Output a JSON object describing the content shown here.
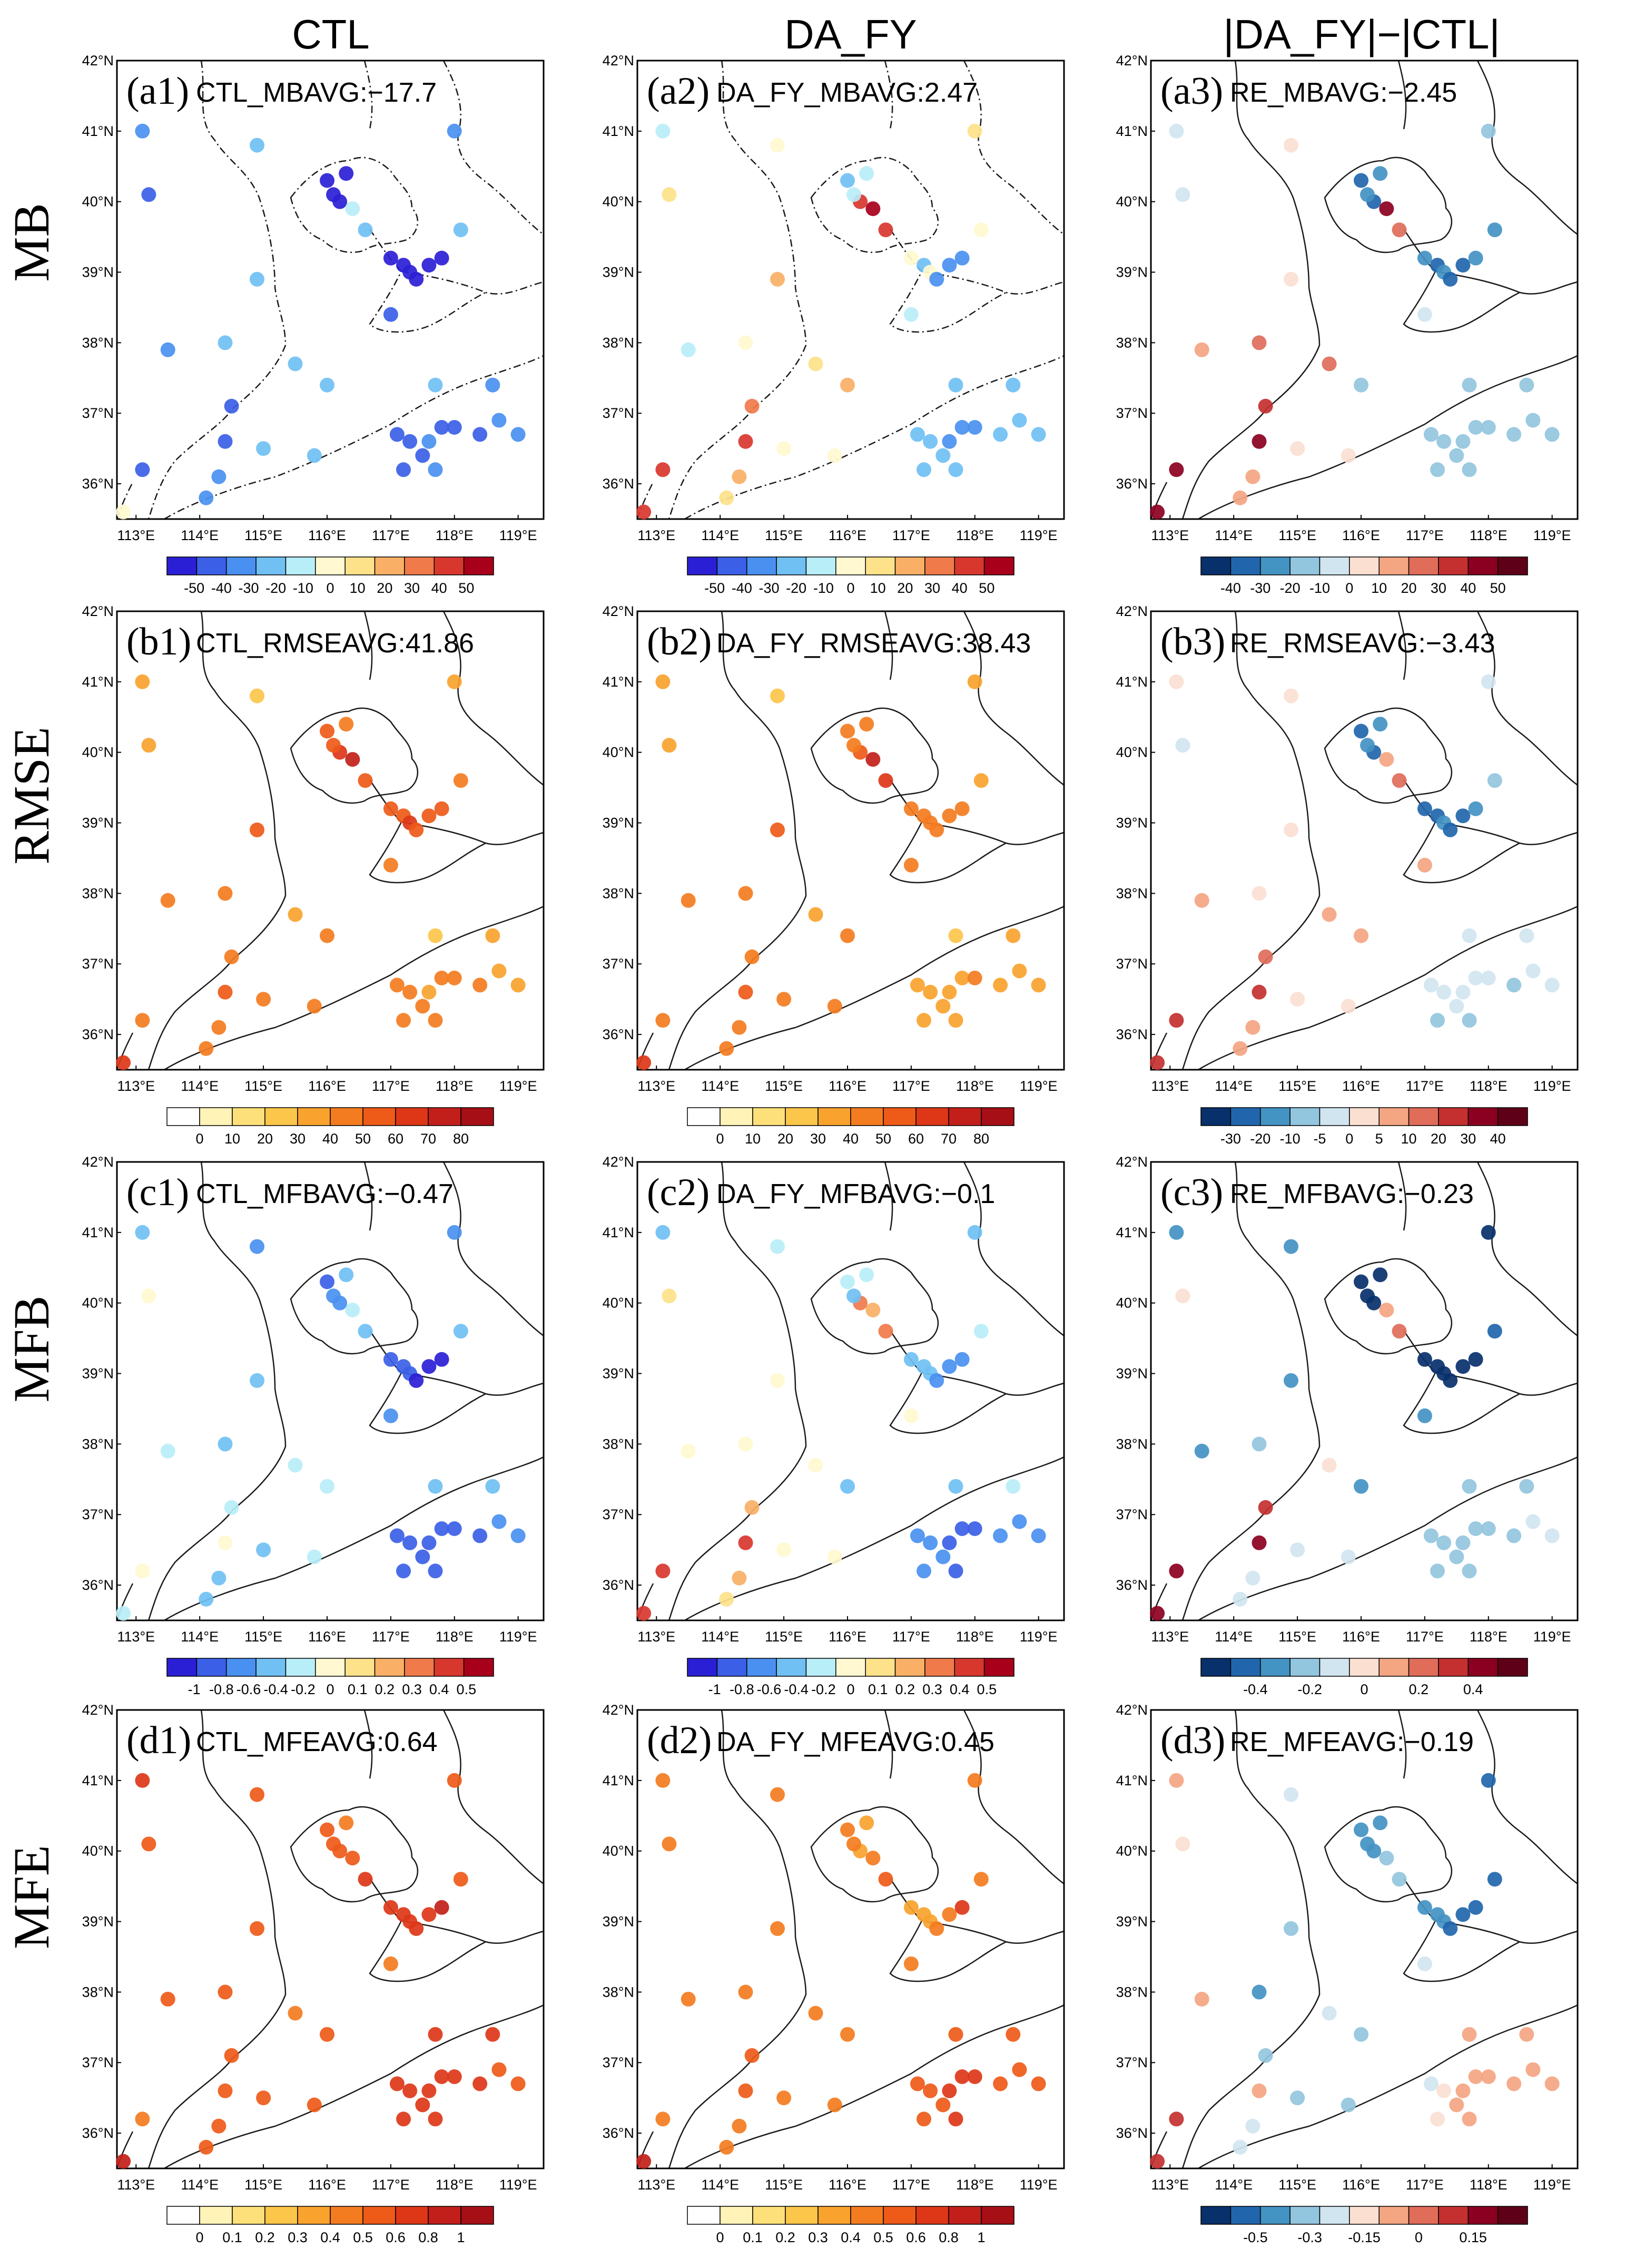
{
  "figure": {
    "column_titles": [
      "CTL",
      "DA_FY",
      "|DA_FY|−|CTL|"
    ],
    "row_labels": [
      "MB",
      "RMSE",
      "MFB",
      "MFE"
    ],
    "lat_ticks": [
      "36°N",
      "37°N",
      "38°N",
      "39°N",
      "40°N",
      "41°N",
      "42°N"
    ],
    "lon_ticks": [
      "113°E",
      "114°E",
      "115°E",
      "116°E",
      "117°E",
      "118°E",
      "119°E"
    ]
  },
  "chart_data": [
    {
      "type": "scatter-map",
      "label": "(a1)",
      "stat_text": "CTL_MBAVG:−17.7",
      "row": 0,
      "col": 0,
      "colorbar": "bwr",
      "colorbar_labels": [
        "-50",
        "-40",
        "-30",
        "-20",
        "-10",
        "0",
        "10",
        "20",
        "30",
        "40",
        "50"
      ]
    },
    {
      "type": "scatter-map",
      "label": "(a2)",
      "stat_text": "DA_FY_MBAVG:2.47",
      "row": 0,
      "col": 1,
      "colorbar": "bwr",
      "colorbar_labels": [
        "-50",
        "-40",
        "-30",
        "-20",
        "-10",
        "0",
        "10",
        "20",
        "30",
        "40",
        "50"
      ]
    },
    {
      "type": "scatter-map",
      "label": "(a3)",
      "stat_text": "RE_MBAVG:−2.45",
      "row": 0,
      "col": 2,
      "colorbar": "diff",
      "colorbar_labels": [
        "-40",
        "-30",
        "-20",
        "-10",
        "0",
        "10",
        "20",
        "30",
        "40",
        "50"
      ]
    },
    {
      "type": "scatter-map",
      "label": "(b1)",
      "stat_text": "CTL_RMSEAVG:41.86",
      "row": 1,
      "col": 0,
      "colorbar": "heat",
      "colorbar_labels": [
        "0",
        "10",
        "20",
        "30",
        "40",
        "50",
        "60",
        "70",
        "80"
      ]
    },
    {
      "type": "scatter-map",
      "label": "(b2)",
      "stat_text": "DA_FY_RMSEAVG:38.43",
      "row": 1,
      "col": 1,
      "colorbar": "heat",
      "colorbar_labels": [
        "0",
        "10",
        "20",
        "30",
        "40",
        "50",
        "60",
        "70",
        "80"
      ]
    },
    {
      "type": "scatter-map",
      "label": "(b3)",
      "stat_text": "RE_RMSEAVG:−3.43",
      "row": 1,
      "col": 2,
      "colorbar": "diff",
      "colorbar_labels": [
        "-30",
        "-20",
        "-10",
        "-5",
        "0",
        "5",
        "10",
        "20",
        "30",
        "40"
      ]
    },
    {
      "type": "scatter-map",
      "label": "(c1)",
      "stat_text": "CTL_MFBAVG:−0.47",
      "row": 2,
      "col": 0,
      "colorbar": "bwr",
      "colorbar_labels": [
        "-1",
        "-0.8",
        "-0.6",
        "-0.4",
        "-0.2",
        "0",
        "0.1",
        "0.2",
        "0.3",
        "0.4",
        "0.5"
      ]
    },
    {
      "type": "scatter-map",
      "label": "(c2)",
      "stat_text": "DA_FY_MFBAVG:−0.1",
      "row": 2,
      "col": 1,
      "colorbar": "bwr",
      "colorbar_labels": [
        "-1",
        "-0.8",
        "-0.6",
        "-0.4",
        "-0.2",
        "0",
        "0.1",
        "0.2",
        "0.3",
        "0.4",
        "0.5"
      ]
    },
    {
      "type": "scatter-map",
      "label": "(c3)",
      "stat_text": "RE_MFBAVG:−0.23",
      "row": 2,
      "col": 2,
      "colorbar": "diff",
      "colorbar_labels": [
        "-0.4",
        "-0.2",
        "0",
        "0.2",
        "0.4"
      ]
    },
    {
      "type": "scatter-map",
      "label": "(d1)",
      "stat_text": "CTL_MFEAVG:0.64",
      "row": 3,
      "col": 0,
      "colorbar": "heat",
      "colorbar_labels": [
        "0",
        "0.1",
        "0.2",
        "0.3",
        "0.4",
        "0.5",
        "0.6",
        "0.8",
        "1"
      ]
    },
    {
      "type": "scatter-map",
      "label": "(d2)",
      "stat_text": "DA_FY_MFEAVG:0.45",
      "row": 3,
      "col": 1,
      "colorbar": "heat",
      "colorbar_labels": [
        "0",
        "0.1",
        "0.2",
        "0.3",
        "0.4",
        "0.5",
        "0.6",
        "0.8",
        "1"
      ]
    },
    {
      "type": "scatter-map",
      "label": "(d3)",
      "stat_text": "RE_MFEAVG:−0.19",
      "row": 3,
      "col": 2,
      "colorbar": "diff",
      "colorbar_labels": [
        "-0.5",
        "-0.3",
        "-0.15",
        "0",
        "0.15"
      ]
    }
  ],
  "stations": [
    {
      "lon": 113.1,
      "lat": 41.0
    },
    {
      "lon": 113.2,
      "lat": 40.1
    },
    {
      "lon": 113.5,
      "lat": 37.9
    },
    {
      "lon": 113.1,
      "lat": 36.2
    },
    {
      "lon": 114.4,
      "lat": 36.6
    },
    {
      "lon": 114.3,
      "lat": 36.1
    },
    {
      "lon": 114.1,
      "lat": 35.8
    },
    {
      "lon": 114.5,
      "lat": 37.1
    },
    {
      "lon": 114.4,
      "lat": 38.0
    },
    {
      "lon": 115.5,
      "lat": 37.7
    },
    {
      "lon": 114.9,
      "lat": 38.9
    },
    {
      "lon": 114.9,
      "lat": 40.8
    },
    {
      "lon": 115.0,
      "lat": 36.5
    },
    {
      "lon": 116.0,
      "lat": 37.4
    },
    {
      "lon": 115.8,
      "lat": 36.4
    },
    {
      "lon": 116.0,
      "lat": 40.3
    },
    {
      "lon": 116.2,
      "lat": 40.0
    },
    {
      "lon": 116.4,
      "lat": 39.9
    },
    {
      "lon": 116.1,
      "lat": 40.1
    },
    {
      "lon": 116.3,
      "lat": 40.4
    },
    {
      "lon": 116.6,
      "lat": 39.6
    },
    {
      "lon": 117.0,
      "lat": 39.2
    },
    {
      "lon": 117.2,
      "lat": 39.1
    },
    {
      "lon": 117.3,
      "lat": 39.0
    },
    {
      "lon": 117.4,
      "lat": 38.9
    },
    {
      "lon": 117.6,
      "lat": 39.1
    },
    {
      "lon": 117.8,
      "lat": 39.2
    },
    {
      "lon": 118.1,
      "lat": 39.6
    },
    {
      "lon": 117.0,
      "lat": 38.4
    },
    {
      "lon": 118.0,
      "lat": 41.0
    },
    {
      "lon": 118.6,
      "lat": 37.4
    },
    {
      "lon": 117.7,
      "lat": 37.4
    },
    {
      "lon": 117.1,
      "lat": 36.7
    },
    {
      "lon": 117.3,
      "lat": 36.6
    },
    {
      "lon": 117.6,
      "lat": 36.6
    },
    {
      "lon": 117.8,
      "lat": 36.8
    },
    {
      "lon": 118.0,
      "lat": 36.8
    },
    {
      "lon": 117.5,
      "lat": 36.4
    },
    {
      "lon": 117.2,
      "lat": 36.2
    },
    {
      "lon": 117.7,
      "lat": 36.2
    },
    {
      "lon": 118.7,
      "lat": 36.9
    },
    {
      "lon": 119.0,
      "lat": 36.7
    },
    {
      "lon": 118.4,
      "lat": 36.7
    },
    {
      "lon": 112.8,
      "lat": 35.6
    }
  ],
  "colors": {
    "bwr": [
      "#2b1fd6",
      "#3b5fe6",
      "#4a90f0",
      "#70c0f4",
      "#b8eef8",
      "#fff8d0",
      "#fde28a",
      "#f9b066",
      "#f07a4a",
      "#d8372e",
      "#a8001a"
    ],
    "heat": [
      "#ffffff",
      "#fff3b8",
      "#fde07a",
      "#fcc64a",
      "#f9a32e",
      "#f47c20",
      "#ee5a18",
      "#dd3718",
      "#c21f1a",
      "#a50f15"
    ],
    "diff": [
      "#08306b",
      "#2166ac",
      "#4393c3",
      "#92c5de",
      "#d1e5f0",
      "#fbe0d2",
      "#f4a582",
      "#e06c5a",
      "#c3302f",
      "#8b0020",
      "#5e0018"
    ]
  },
  "values": {
    "a1": [
      0.2,
      0.1,
      0.2,
      0.1,
      0.1,
      0.2,
      0.2,
      0.1,
      0.3,
      0.3,
      0.3,
      0.3,
      0.3,
      0.3,
      0.3,
      0.0,
      0.0,
      0.4,
      0.0,
      0.0,
      0.3,
      0.0,
      0.0,
      0.0,
      0.0,
      0.0,
      0.0,
      0.3,
      0.1,
      0.2,
      0.2,
      0.3,
      0.1,
      0.1,
      0.2,
      0.1,
      0.1,
      0.1,
      0.1,
      0.2,
      0.2,
      0.2,
      0.1,
      0.5
    ],
    "a2": [
      0.4,
      0.6,
      0.4,
      0.9,
      0.9,
      0.7,
      0.6,
      0.8,
      0.5,
      0.6,
      0.7,
      0.5,
      0.5,
      0.7,
      0.5,
      0.3,
      0.9,
      1.0,
      0.4,
      0.4,
      0.9,
      0.5,
      0.3,
      0.5,
      0.2,
      0.2,
      0.2,
      0.5,
      0.4,
      0.6,
      0.3,
      0.3,
      0.3,
      0.3,
      0.2,
      0.2,
      0.2,
      0.3,
      0.3,
      0.3,
      0.3,
      0.3,
      0.3,
      0.9
    ],
    "a3": [
      0.4,
      0.4,
      0.6,
      0.9,
      0.9,
      0.6,
      0.6,
      0.8,
      0.7,
      0.7,
      0.5,
      0.5,
      0.5,
      0.3,
      0.5,
      0.1,
      0.1,
      0.9,
      0.2,
      0.2,
      0.7,
      0.2,
      0.1,
      0.2,
      0.1,
      0.1,
      0.2,
      0.2,
      0.4,
      0.3,
      0.3,
      0.3,
      0.3,
      0.3,
      0.3,
      0.3,
      0.3,
      0.3,
      0.3,
      0.3,
      0.3,
      0.3,
      0.3,
      0.9
    ],
    "b1": [
      0.4,
      0.4,
      0.5,
      0.5,
      0.7,
      0.5,
      0.5,
      0.6,
      0.6,
      0.4,
      0.7,
      0.3,
      0.5,
      0.5,
      0.5,
      0.7,
      0.8,
      0.9,
      0.7,
      0.6,
      0.7,
      0.7,
      0.7,
      0.8,
      0.7,
      0.7,
      0.7,
      0.6,
      0.5,
      0.4,
      0.4,
      0.3,
      0.5,
      0.5,
      0.4,
      0.5,
      0.6,
      0.5,
      0.5,
      0.5,
      0.4,
      0.4,
      0.5,
      0.8
    ],
    "b2": [
      0.4,
      0.4,
      0.5,
      0.5,
      0.7,
      0.5,
      0.5,
      0.6,
      0.6,
      0.4,
      0.7,
      0.3,
      0.5,
      0.5,
      0.5,
      0.6,
      0.7,
      0.9,
      0.6,
      0.5,
      0.8,
      0.5,
      0.5,
      0.5,
      0.5,
      0.5,
      0.5,
      0.4,
      0.5,
      0.4,
      0.4,
      0.3,
      0.4,
      0.4,
      0.4,
      0.4,
      0.5,
      0.4,
      0.4,
      0.4,
      0.4,
      0.4,
      0.4,
      0.8
    ],
    "b3": [
      0.5,
      0.4,
      0.6,
      0.8,
      0.8,
      0.6,
      0.6,
      0.7,
      0.5,
      0.6,
      0.5,
      0.5,
      0.5,
      0.6,
      0.5,
      0.1,
      0.1,
      0.6,
      0.2,
      0.2,
      0.7,
      0.1,
      0.1,
      0.2,
      0.1,
      0.1,
      0.2,
      0.3,
      0.6,
      0.4,
      0.4,
      0.4,
      0.4,
      0.4,
      0.4,
      0.4,
      0.4,
      0.4,
      0.3,
      0.3,
      0.4,
      0.4,
      0.3,
      0.8
    ],
    "c1": [
      0.3,
      0.5,
      0.4,
      0.5,
      0.5,
      0.3,
      0.3,
      0.4,
      0.3,
      0.4,
      0.3,
      0.2,
      0.3,
      0.4,
      0.4,
      0.1,
      0.2,
      0.4,
      0.2,
      0.3,
      0.3,
      0.1,
      0.1,
      0.1,
      0.0,
      0.0,
      0.0,
      0.3,
      0.2,
      0.2,
      0.3,
      0.3,
      0.1,
      0.1,
      0.1,
      0.1,
      0.1,
      0.1,
      0.1,
      0.1,
      0.2,
      0.2,
      0.1,
      0.4
    ],
    "c2": [
      0.3,
      0.6,
      0.5,
      0.9,
      0.9,
      0.7,
      0.6,
      0.7,
      0.5,
      0.5,
      0.5,
      0.4,
      0.5,
      0.3,
      0.5,
      0.4,
      0.8,
      0.7,
      0.3,
      0.4,
      0.8,
      0.3,
      0.3,
      0.3,
      0.2,
      0.2,
      0.2,
      0.4,
      0.5,
      0.3,
      0.4,
      0.3,
      0.2,
      0.2,
      0.1,
      0.1,
      0.1,
      0.2,
      0.2,
      0.1,
      0.2,
      0.2,
      0.2,
      0.9
    ],
    "c3": [
      0.2,
      0.5,
      0.2,
      0.9,
      0.9,
      0.4,
      0.4,
      0.8,
      0.3,
      0.5,
      0.2,
      0.2,
      0.4,
      0.2,
      0.4,
      0.0,
      0.0,
      0.6,
      0.0,
      0.0,
      0.7,
      0.0,
      0.0,
      0.0,
      0.0,
      0.0,
      0.0,
      0.1,
      0.2,
      0.0,
      0.3,
      0.3,
      0.3,
      0.3,
      0.3,
      0.3,
      0.3,
      0.3,
      0.3,
      0.3,
      0.4,
      0.4,
      0.3,
      0.9
    ],
    "d1": [
      0.8,
      0.7,
      0.7,
      0.5,
      0.7,
      0.7,
      0.7,
      0.7,
      0.7,
      0.6,
      0.7,
      0.7,
      0.7,
      0.7,
      0.7,
      0.7,
      0.7,
      0.7,
      0.7,
      0.6,
      0.8,
      0.8,
      0.8,
      0.8,
      0.8,
      0.8,
      0.9,
      0.7,
      0.6,
      0.7,
      0.8,
      0.8,
      0.8,
      0.8,
      0.8,
      0.8,
      0.8,
      0.8,
      0.8,
      0.8,
      0.7,
      0.7,
      0.8,
      0.9
    ],
    "d2": [
      0.6,
      0.6,
      0.6,
      0.5,
      0.7,
      0.6,
      0.6,
      0.7,
      0.6,
      0.5,
      0.6,
      0.6,
      0.6,
      0.6,
      0.6,
      0.5,
      0.4,
      0.5,
      0.5,
      0.4,
      0.7,
      0.4,
      0.4,
      0.4,
      0.5,
      0.6,
      0.8,
      0.5,
      0.5,
      0.6,
      0.7,
      0.7,
      0.7,
      0.7,
      0.8,
      0.8,
      0.8,
      0.7,
      0.7,
      0.8,
      0.7,
      0.7,
      0.7,
      0.9
    ],
    "d3": [
      0.6,
      0.5,
      0.6,
      0.8,
      0.6,
      0.4,
      0.4,
      0.3,
      0.2,
      0.4,
      0.3,
      0.4,
      0.3,
      0.3,
      0.3,
      0.2,
      0.2,
      0.3,
      0.2,
      0.2,
      0.3,
      0.2,
      0.2,
      0.2,
      0.1,
      0.1,
      0.1,
      0.1,
      0.4,
      0.1,
      0.6,
      0.6,
      0.4,
      0.5,
      0.6,
      0.6,
      0.6,
      0.6,
      0.5,
      0.6,
      0.6,
      0.6,
      0.6,
      0.8
    ]
  }
}
